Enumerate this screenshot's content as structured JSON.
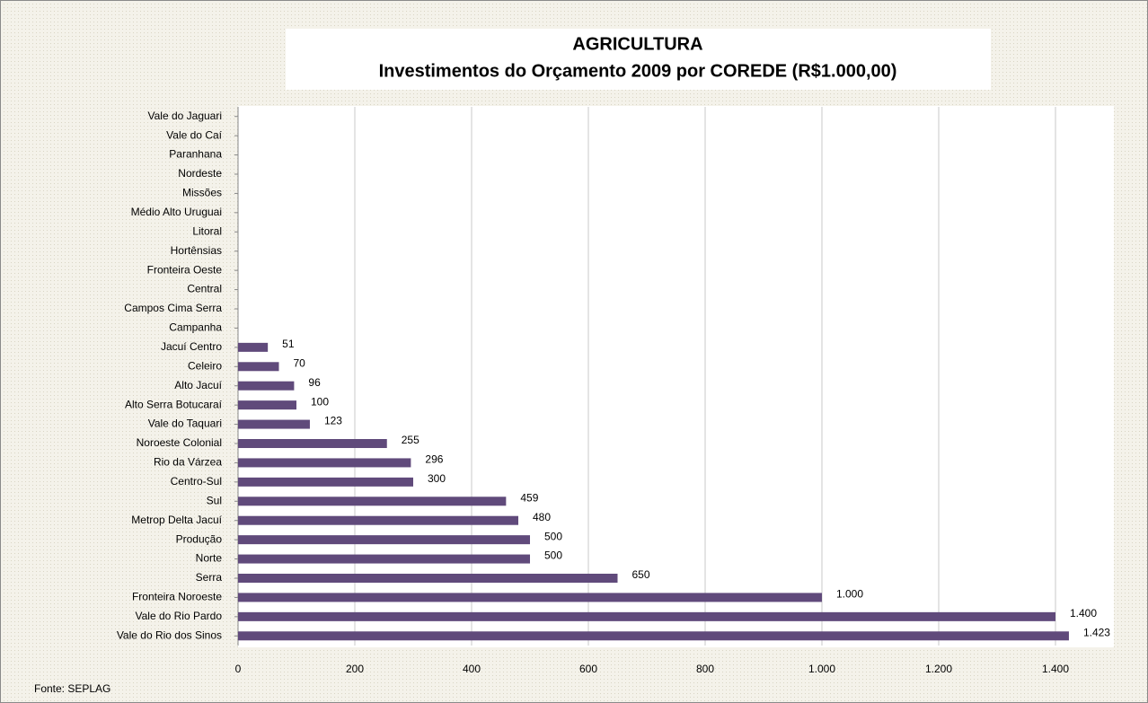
{
  "chart_data": {
    "type": "barh",
    "title": "AGRICULTURA",
    "subtitle": "Investimentos do Orçamento 2009 por COREDE (R$1.000,00)",
    "source": "Fonte:  SEPLAG",
    "categories": [
      "Vale do Jaguari",
      "Vale do Caí",
      "Paranhana",
      "Nordeste",
      "Missões",
      "Médio Alto Uruguai",
      "Litoral",
      "Hortênsias",
      "Fronteira Oeste",
      "Central",
      "Campos Cima Serra",
      "Campanha",
      "Jacuí Centro",
      "Celeiro",
      "Alto Jacuí",
      "Alto Serra Botucaraí",
      "Vale do Taquari",
      "Noroeste Colonial",
      "Rio da Várzea",
      "Centro-Sul",
      "Sul",
      "Metrop Delta Jacuí",
      "Produção",
      "Norte",
      "Serra",
      "Fronteira Noroeste",
      "Vale do Rio Pardo",
      "Vale do Rio dos Sinos"
    ],
    "values": [
      0,
      0,
      0,
      0,
      0,
      0,
      0,
      0,
      0,
      0,
      0,
      0,
      51,
      70,
      96,
      100,
      123,
      255,
      296,
      300,
      459,
      480,
      500,
      500,
      650,
      1000,
      1400,
      1423
    ],
    "value_labels": [
      null,
      null,
      null,
      null,
      null,
      null,
      null,
      null,
      null,
      null,
      null,
      null,
      "51",
      "70",
      "96",
      "100",
      "123",
      "255",
      "296",
      "300",
      "459",
      "480",
      "500",
      "500",
      "650",
      "1.000",
      "1.400",
      "1.423"
    ],
    "color": "#604a7b",
    "xlim": [
      0,
      1500
    ],
    "xticks": [
      0,
      200,
      400,
      600,
      800,
      {
        "value": 1000,
        "label": "1.000"
      },
      {
        "value": 1200,
        "label": "1.200"
      },
      {
        "value": 1400,
        "label": "1.400"
      }
    ],
    "grid": true
  }
}
